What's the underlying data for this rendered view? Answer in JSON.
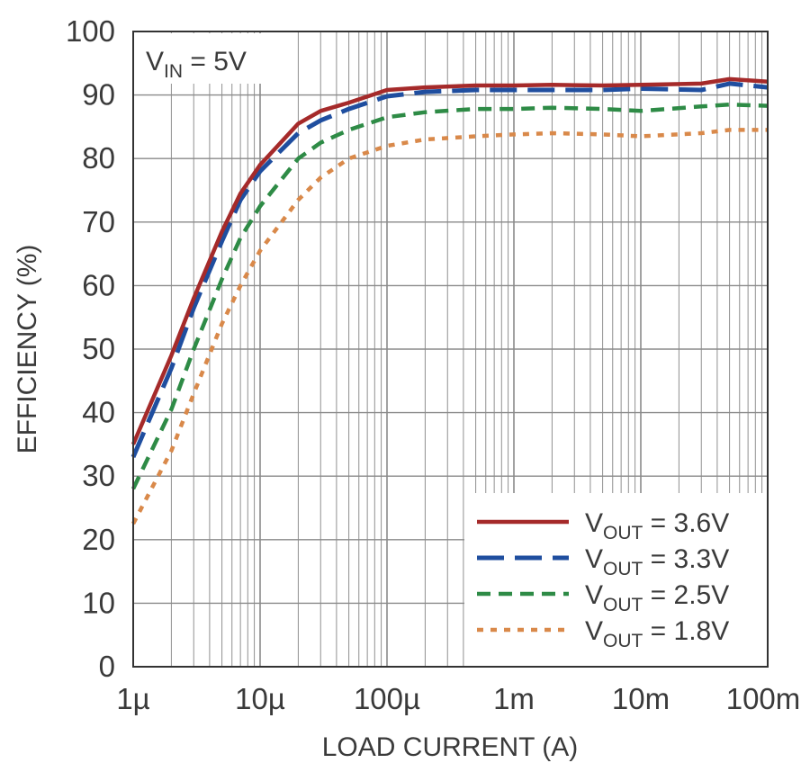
{
  "chart_data": {
    "type": "line",
    "x_scale": "log",
    "xlabel": "LOAD CURRENT (A)",
    "ylabel": "EFFICIENCY (%)",
    "xlim": [
      1e-06,
      0.1
    ],
    "ylim": [
      0,
      100
    ],
    "grid": true,
    "legend_position": "bottom-right",
    "x_ticks": [
      {
        "value": 1e-06,
        "label": "1µ"
      },
      {
        "value": 1e-05,
        "label": "10µ"
      },
      {
        "value": 0.0001,
        "label": "100µ"
      },
      {
        "value": 0.001,
        "label": "1m"
      },
      {
        "value": 0.01,
        "label": "10m"
      },
      {
        "value": 0.1,
        "label": "100m"
      }
    ],
    "y_ticks": [
      0,
      10,
      20,
      30,
      40,
      50,
      60,
      70,
      80,
      90,
      100
    ],
    "annotation": {
      "main": "V",
      "sub": "IN",
      "rest": " = 5V"
    },
    "series": [
      {
        "name": "VOUT = 3.6V",
        "legend": {
          "main": "V",
          "sub": "OUT",
          "rest": " = 3.6V"
        },
        "color": "#a52a2a",
        "style": "solid",
        "x": [
          1e-06,
          2e-06,
          3e-06,
          5e-06,
          7e-06,
          1e-05,
          2e-05,
          3e-05,
          5e-05,
          0.0001,
          0.0002,
          0.0005,
          0.001,
          0.002,
          0.005,
          0.01,
          0.03,
          0.05,
          0.1
        ],
        "y": [
          35,
          49,
          58,
          68.5,
          74.5,
          79,
          85.5,
          87.5,
          88.8,
          90.8,
          91.2,
          91.5,
          91.5,
          91.6,
          91.5,
          91.6,
          91.8,
          92.5,
          92.1
        ]
      },
      {
        "name": "VOUT = 3.3V",
        "legend": {
          "main": "V",
          "sub": "OUT",
          "rest": " = 3.3V"
        },
        "color": "#1f4e9f",
        "style": "longdash",
        "x": [
          1e-06,
          2e-06,
          3e-06,
          5e-06,
          7e-06,
          1e-05,
          2e-05,
          3e-05,
          5e-05,
          0.0001,
          0.0002,
          0.0005,
          0.001,
          0.002,
          0.005,
          0.01,
          0.03,
          0.05,
          0.1
        ],
        "y": [
          33,
          47,
          56.5,
          67,
          73.5,
          78,
          84,
          86,
          87.8,
          89.8,
          90.5,
          90.8,
          90.8,
          90.8,
          90.8,
          91,
          90.8,
          91.8,
          91.2
        ]
      },
      {
        "name": "VOUT = 2.5V",
        "legend": {
          "main": "V",
          "sub": "OUT",
          "rest": " = 2.5V"
        },
        "color": "#2e8b46",
        "style": "dash",
        "x": [
          1e-06,
          2e-06,
          3e-06,
          5e-06,
          7e-06,
          1e-05,
          2e-05,
          3e-05,
          5e-05,
          0.0001,
          0.0002,
          0.0005,
          0.001,
          0.002,
          0.005,
          0.01,
          0.03,
          0.05,
          0.1
        ],
        "y": [
          28,
          40.5,
          50,
          61,
          67.5,
          72.5,
          80,
          82.5,
          84.5,
          86.5,
          87.3,
          87.8,
          87.8,
          88,
          87.8,
          87.5,
          88.2,
          88.5,
          88.3
        ]
      },
      {
        "name": "VOUT = 1.8V",
        "legend": {
          "main": "V",
          "sub": "OUT",
          "rest": " = 1.8V"
        },
        "color": "#d9894a",
        "style": "dot",
        "x": [
          1e-06,
          2e-06,
          3e-06,
          5e-06,
          7e-06,
          1e-05,
          2e-05,
          3e-05,
          5e-05,
          0.0001,
          0.0002,
          0.0005,
          0.001,
          0.002,
          0.005,
          0.01,
          0.03,
          0.05,
          0.1
        ],
        "y": [
          22.5,
          34,
          43,
          54,
          60,
          65.5,
          73.5,
          77,
          80,
          82,
          83,
          83.5,
          83.8,
          84,
          83.8,
          83.5,
          84,
          84.5,
          84.5
        ]
      }
    ]
  }
}
